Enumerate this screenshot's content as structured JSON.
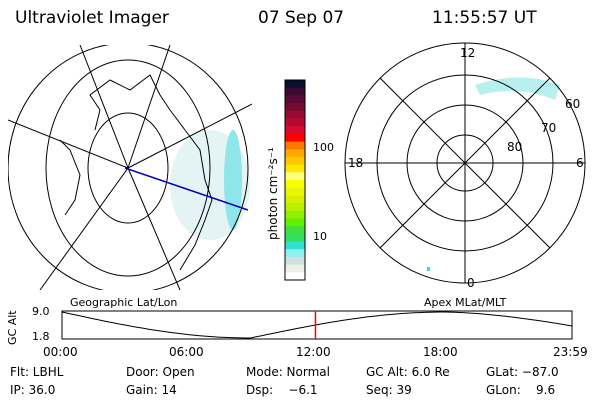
{
  "header": {
    "instrument": "Ultraviolet Imager",
    "date": "07 Sep 07",
    "time": "11:55:57 UT"
  },
  "colorbar": {
    "label": "photon cm⁻²s⁻¹",
    "ticks": [
      "100",
      "10"
    ],
    "colors": [
      "#0a0f30",
      "#3a0a30",
      "#5a0a38",
      "#780a30",
      "#980a30",
      "#b80a30",
      "#d80a30",
      "#ff0000",
      "#ff7800",
      "#ffa800",
      "#ffc800",
      "#ffe800",
      "#ffff80",
      "#f8ff00",
      "#e8f800",
      "#d8f000",
      "#b8f000",
      "#90f000",
      "#60f000",
      "#40e040",
      "#30e060",
      "#30e0d0",
      "#90f0f0",
      "#d0e0e0",
      "#e8f0e8",
      "#ffffff"
    ]
  },
  "polar": {
    "mlt_labels": {
      "top": "12",
      "left": "18",
      "right": "6",
      "bottom": "0"
    },
    "lat_labels": [
      "60",
      "70",
      "80"
    ]
  },
  "maps": {
    "left_label": "Geographic Lat/Lon",
    "right_label": "Apex MLat/MLT"
  },
  "timeline": {
    "axis_label": "GC Alt",
    "y_ticks": [
      "9.0",
      "1.8"
    ],
    "x_ticks": [
      "00:00",
      "06:00",
      "12:00",
      "18:00",
      "23:59"
    ],
    "current_time_fraction": 0.497,
    "marker_color": "#ff0000"
  },
  "info": {
    "row1": [
      "Flt: LBHL",
      "Door: Open",
      "Mode: Normal",
      "GC Alt: 6.0 Re",
      "GLat: −87.0"
    ],
    "row2": [
      "IP: 36.0",
      "Gain: 14",
      "Dsp:    −6.1",
      "Seq: 39",
      "GLon:    9.6"
    ]
  }
}
